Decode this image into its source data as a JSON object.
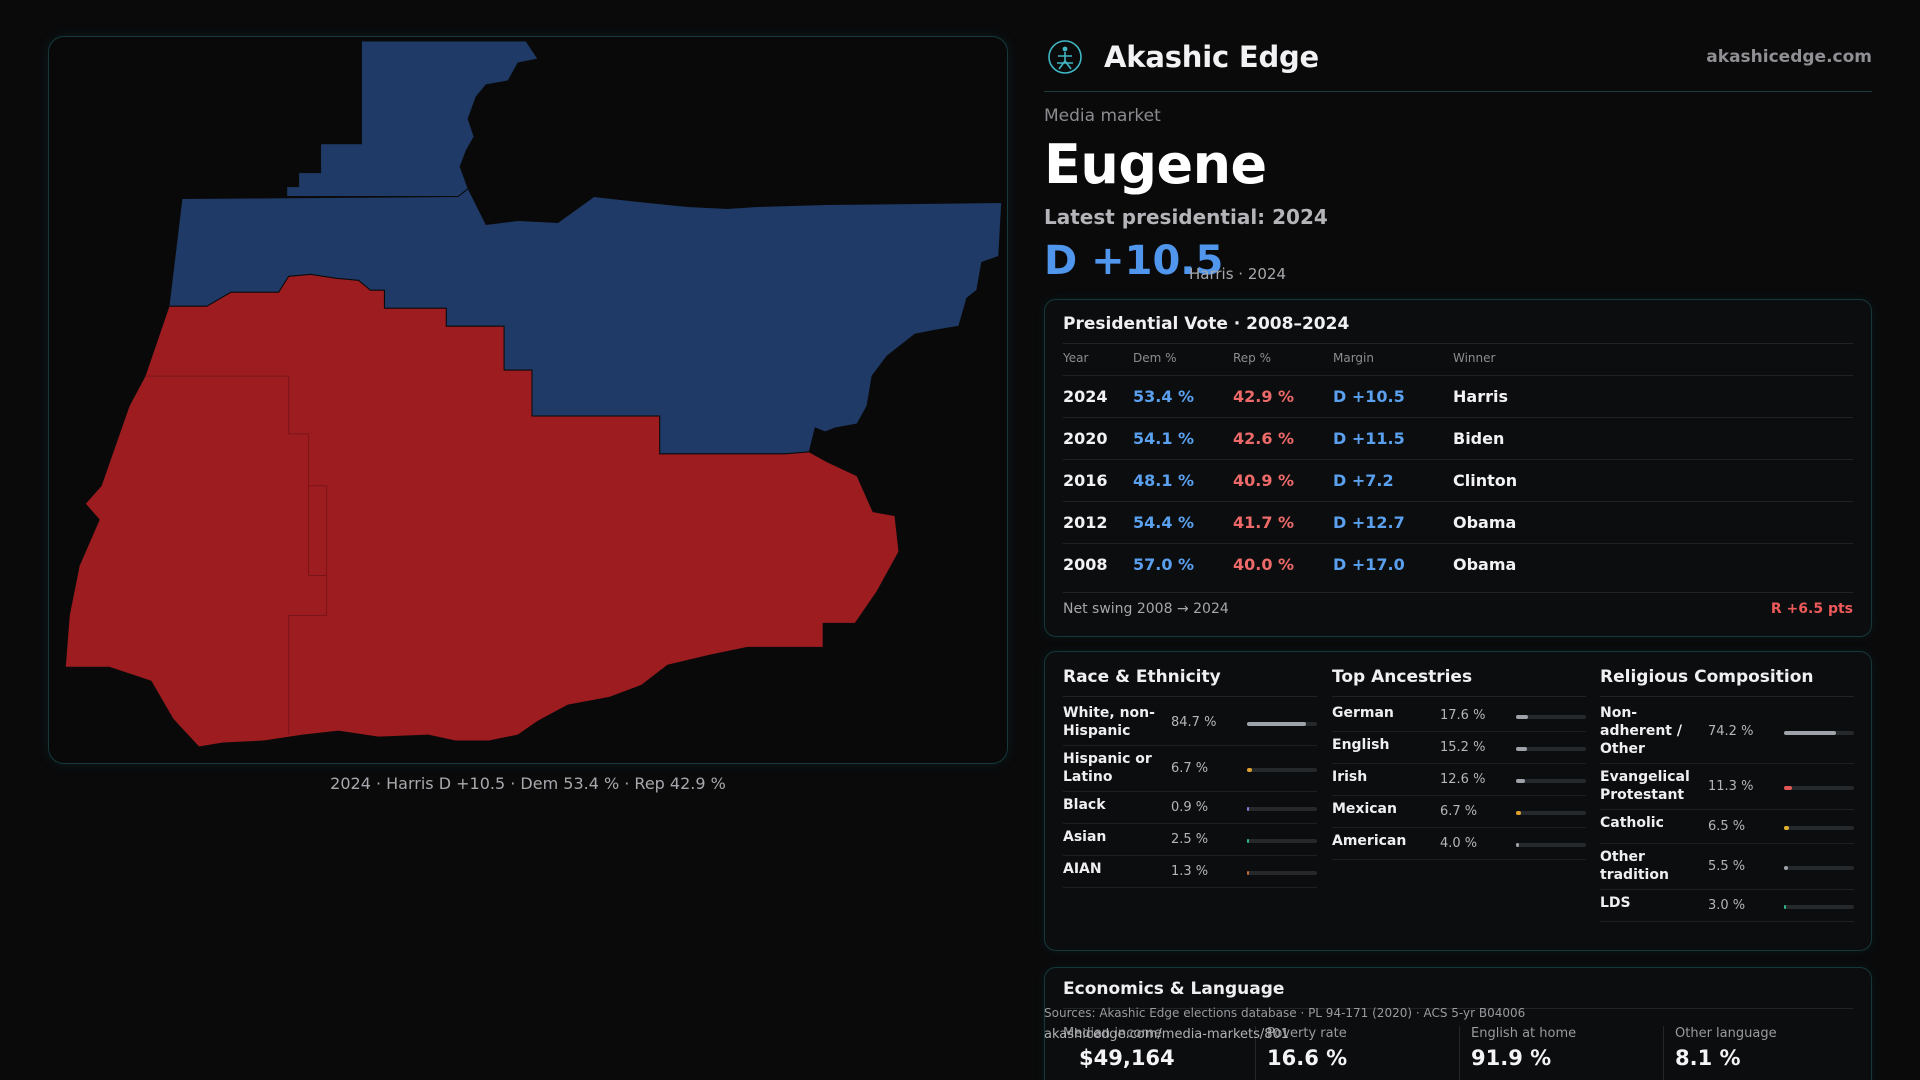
{
  "brand": {
    "name": "Akashic Edge",
    "url": "akashicedge.com",
    "logo_icon": "akashic-emblem-icon"
  },
  "header": {
    "kicker": "Media market",
    "title": "Eugene",
    "latest_label": "Latest presidential: 2024",
    "margin": "D +10.5",
    "margin_sub": "Harris · 2024"
  },
  "map": {
    "caption": "2024 · Harris D +10.5 · Dem 53.4 % · Rep 42.9 %",
    "colors": {
      "dem": "#1f3a66",
      "rep": "#9c1c20",
      "outline": "#0a0a0a"
    }
  },
  "vote": {
    "title": "Presidential Vote · 2008–2024",
    "headers": {
      "year": "Year",
      "dem": "Dem %",
      "rep": "Rep %",
      "margin": "Margin",
      "winner": "Winner"
    },
    "rows": [
      {
        "year": "2024",
        "dem": "53.4 %",
        "rep": "42.9 %",
        "margin": "D +10.5",
        "winner": "Harris"
      },
      {
        "year": "2020",
        "dem": "54.1 %",
        "rep": "42.6 %",
        "margin": "D +11.5",
        "winner": "Biden"
      },
      {
        "year": "2016",
        "dem": "48.1 %",
        "rep": "40.9 %",
        "margin": "D +7.2",
        "winner": "Clinton"
      },
      {
        "year": "2012",
        "dem": "54.4 %",
        "rep": "41.7 %",
        "margin": "D +12.7",
        "winner": "Obama"
      },
      {
        "year": "2008",
        "dem": "57.0 %",
        "rep": "40.0 %",
        "margin": "D +17.0",
        "winner": "Obama"
      }
    ],
    "swing_label": "Net swing 2008 → 2024",
    "swing_value": "R +6.5 pts"
  },
  "race": {
    "title": "Race & Ethnicity",
    "items": [
      {
        "label": "White, non-Hispanic",
        "value": "84.7 %",
        "pct": 84.7,
        "color": "#9ea3aa"
      },
      {
        "label": "Hispanic or Latino",
        "value": "6.7 %",
        "pct": 6.7,
        "color": "#e0a030"
      },
      {
        "label": "Black",
        "value": "0.9 %",
        "pct": 0.9,
        "color": "#8a7ad0"
      },
      {
        "label": "Asian",
        "value": "2.5 %",
        "pct": 2.5,
        "color": "#2fb58a"
      },
      {
        "label": "AIAN",
        "value": "1.3 %",
        "pct": 1.3,
        "color": "#c06a3a"
      }
    ]
  },
  "ancestry": {
    "title": "Top Ancestries",
    "items": [
      {
        "label": "German",
        "value": "17.6 %",
        "pct": 17.6,
        "color": "#9ea3aa"
      },
      {
        "label": "English",
        "value": "15.2 %",
        "pct": 15.2,
        "color": "#9ea3aa"
      },
      {
        "label": "Irish",
        "value": "12.6 %",
        "pct": 12.6,
        "color": "#9ea3aa"
      },
      {
        "label": "Mexican",
        "value": "6.7 %",
        "pct": 6.7,
        "color": "#e0a030"
      },
      {
        "label": "American",
        "value": "4.0 %",
        "pct": 4.0,
        "color": "#9ea3aa"
      }
    ]
  },
  "religion": {
    "title": "Religious Composition",
    "items": [
      {
        "label": "Non-adherent / Other",
        "value": "74.2 %",
        "pct": 74.2,
        "color": "#9ea3aa"
      },
      {
        "label": "Evangelical Protestant",
        "value": "11.3 %",
        "pct": 11.3,
        "color": "#e05656"
      },
      {
        "label": "Catholic",
        "value": "6.5 %",
        "pct": 6.5,
        "color": "#e0b030"
      },
      {
        "label": "Other tradition",
        "value": "5.5 %",
        "pct": 5.5,
        "color": "#9ea3aa"
      },
      {
        "label": "LDS",
        "value": "3.0 %",
        "pct": 3.0,
        "color": "#2fb58a"
      }
    ]
  },
  "econ": {
    "title": "Economics & Language",
    "cells": [
      {
        "label": "Median income",
        "value": "$49,164"
      },
      {
        "label": "Poverty rate",
        "value": "16.6 %"
      },
      {
        "label": "English at home",
        "value": "91.9 %"
      },
      {
        "label": "Other language",
        "value": "8.1 %"
      }
    ]
  },
  "footer": {
    "sources": "Sources: Akashic Edge elections database · PL 94-171 (2020) · ACS 5-yr B04006",
    "url": "akashicedge.com/media-markets/801"
  }
}
